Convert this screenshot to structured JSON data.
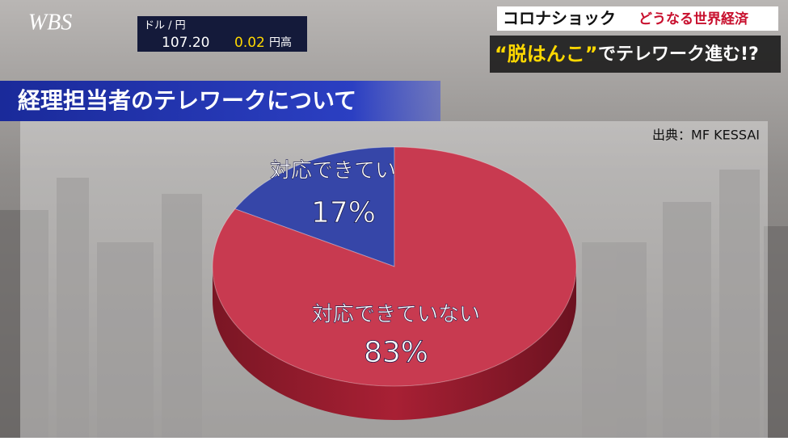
{
  "screen": {
    "logo": "WBS",
    "fx": {
      "pair": "ドル / 円",
      "rate": "107.20",
      "change": "0.02",
      "direction": "円高"
    },
    "headline": {
      "tag": "コロナショック",
      "series": "どうなる世界経済",
      "highlight": "“脱はんこ”",
      "rest": "でテレワーク進む!?"
    }
  },
  "chart_data": {
    "type": "pie",
    "title": "経理担当者のテレワークについて",
    "source": "出典：MF KESSAI",
    "categories": [
      "対応できている",
      "対応できていない"
    ],
    "values": [
      17,
      83
    ],
    "value_labels": [
      "17%",
      "83%"
    ],
    "colors": [
      "#3646a8",
      "#c83a50"
    ]
  }
}
